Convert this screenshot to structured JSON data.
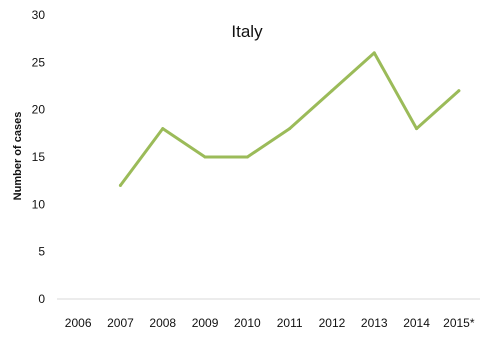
{
  "chart_data": {
    "type": "line",
    "title": "Italy",
    "xlabel": "",
    "ylabel": "Number of cases",
    "categories": [
      "2006",
      "2007",
      "2008",
      "2009",
      "2010",
      "2011",
      "2012",
      "2013",
      "2014",
      "2015*"
    ],
    "series": [
      {
        "values": [
          null,
          12,
          18,
          15,
          15,
          18,
          22,
          26,
          18,
          22
        ]
      }
    ],
    "ylim": [
      0,
      30
    ],
    "yticks": [
      0,
      5,
      10,
      15,
      20,
      25,
      30
    ],
    "grid": false,
    "legend": "none",
    "colors": {
      "line": "#9bbb59",
      "axis": "#d9d9d9"
    }
  }
}
